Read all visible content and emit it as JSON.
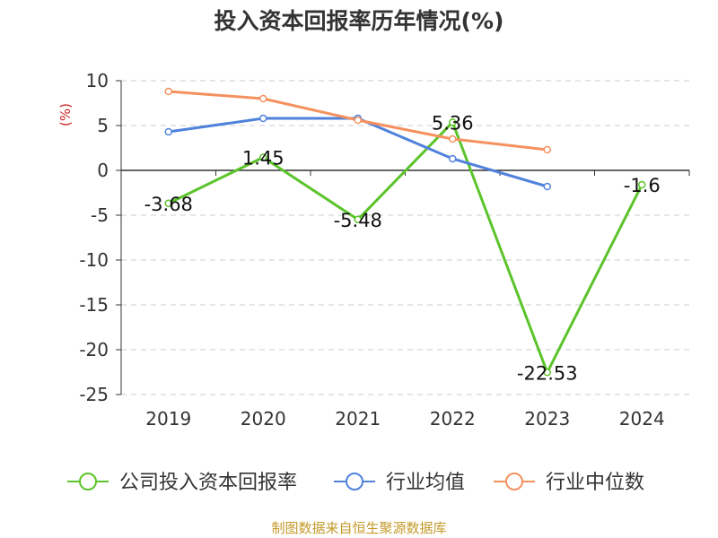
{
  "chart_data": {
    "type": "line",
    "title": "投入资本回报率历年情况(%)",
    "ylabel": "(%)",
    "xlabel": "",
    "categories": [
      "2019",
      "2020",
      "2021",
      "2022",
      "2023",
      "2024"
    ],
    "ylim": [
      -25,
      10
    ],
    "yticks": [
      10,
      5,
      0,
      -5,
      -10,
      -15,
      -20,
      -25
    ],
    "grid": true,
    "legend_position": "bottom",
    "series": [
      {
        "name": "公司投入资本回报率",
        "color": "#5bc42a",
        "values": [
          -3.68,
          1.45,
          -5.48,
          5.36,
          -22.53,
          -1.6
        ],
        "labels": [
          "-3.68",
          "1.45",
          "-5.48",
          "5.36",
          "-22.53",
          "-1.6"
        ]
      },
      {
        "name": "行业均值",
        "color": "#5082dc",
        "values": [
          4.3,
          5.8,
          5.8,
          1.3,
          -1.8,
          null
        ]
      },
      {
        "name": "行业中位数",
        "color": "#f5915f",
        "values": [
          8.8,
          8.0,
          5.6,
          3.5,
          2.3,
          null
        ]
      }
    ]
  },
  "footer": "制图数据来自恒生聚源数据库",
  "colors": {
    "ylabel": "#cc2222",
    "axis": "#333333",
    "grid": "#cccccc"
  }
}
